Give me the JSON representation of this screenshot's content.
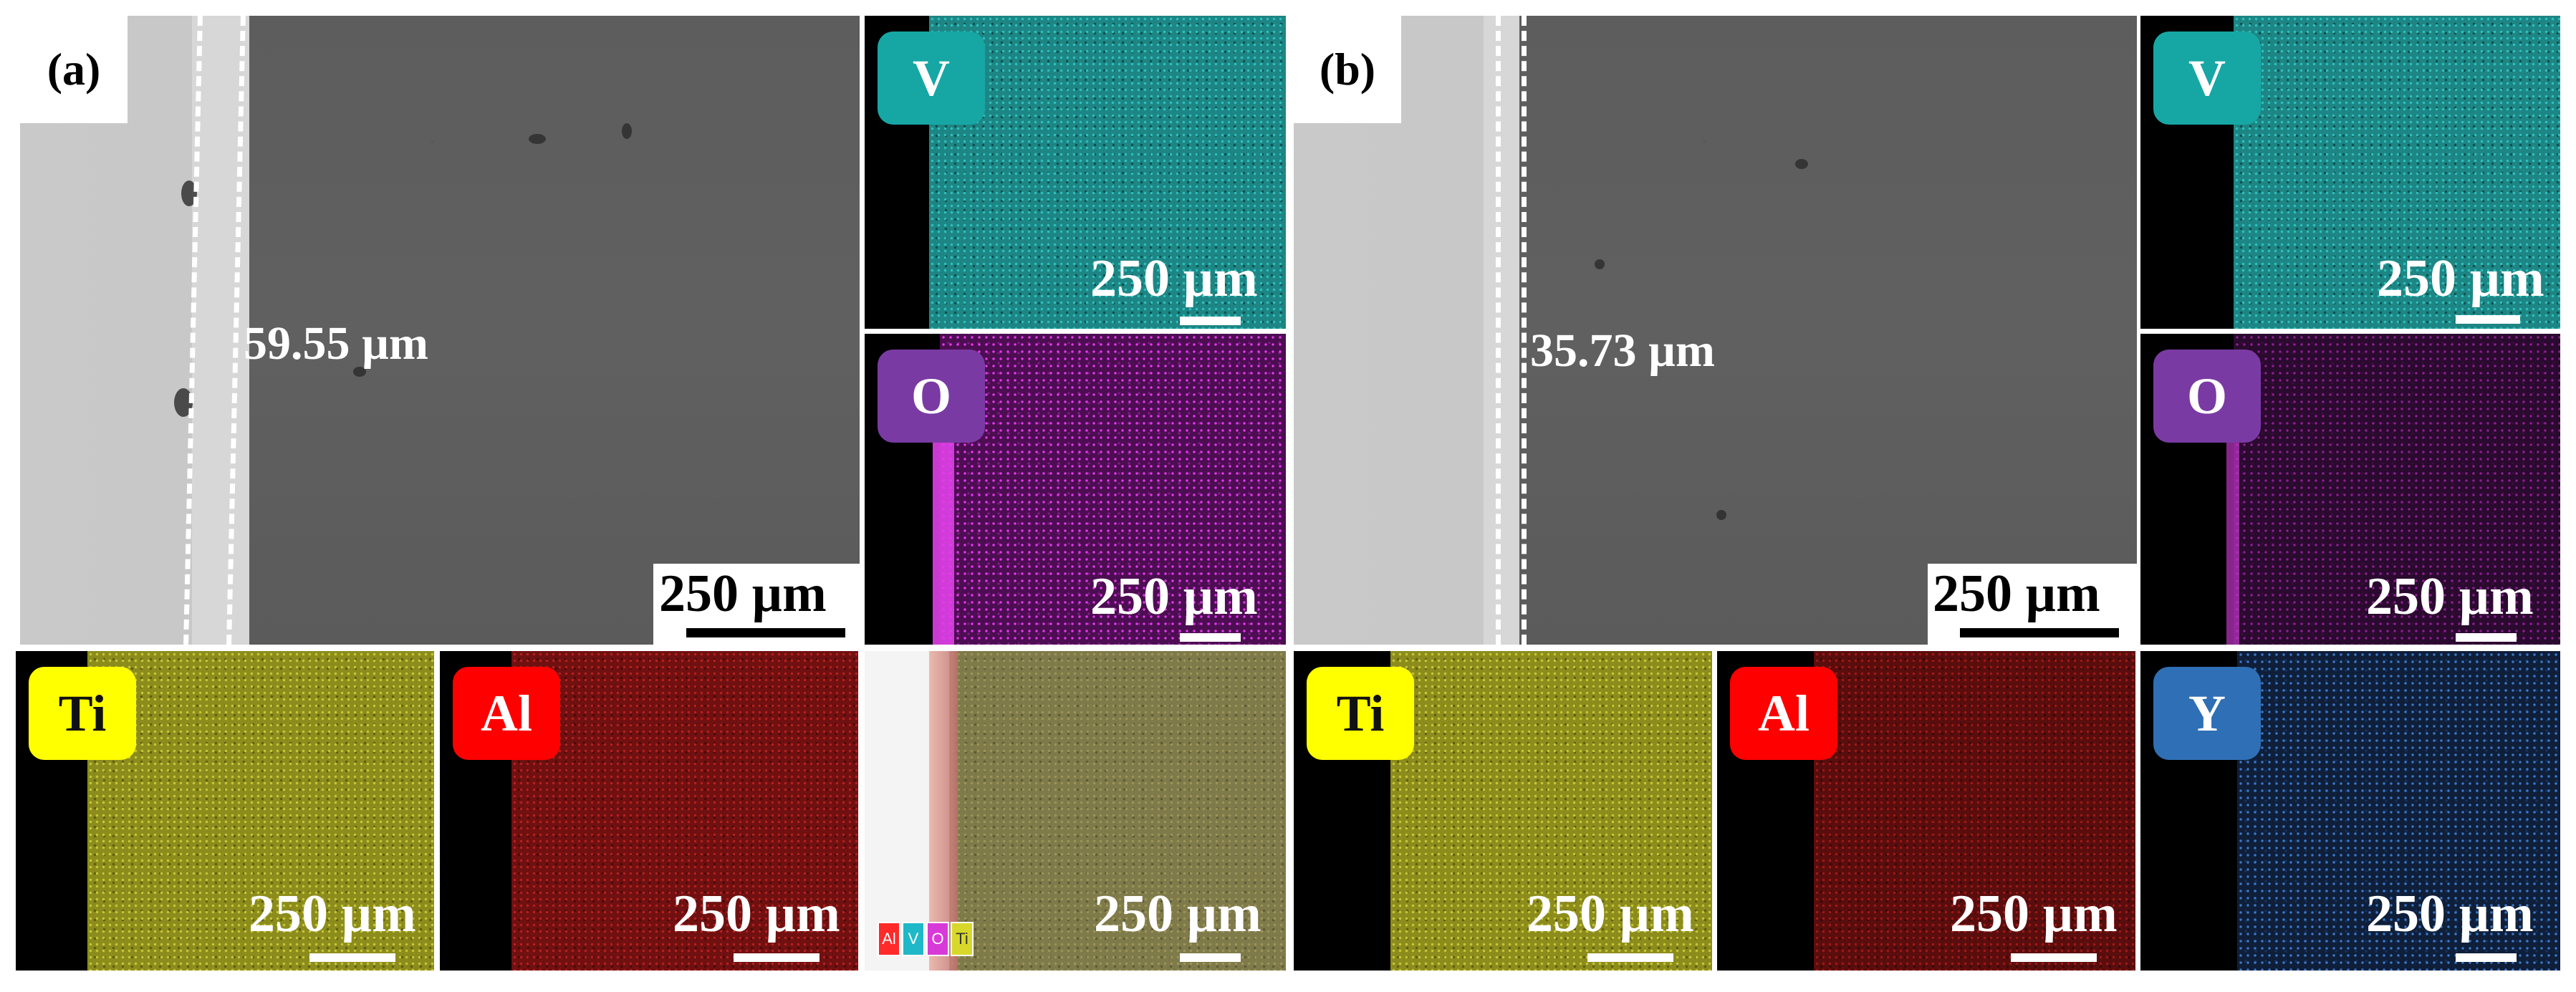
{
  "panel_labels": {
    "a": "(a)",
    "b": "(b)"
  },
  "thickness": {
    "a": "59.55 µm",
    "b": "35.73 µm"
  },
  "scale_bar": "250 µm",
  "elements": {
    "V": "V",
    "O": "O",
    "Ti": "Ti",
    "Al": "Al",
    "Y": "Y"
  },
  "overlay_legend": [
    "Al",
    "V",
    "O",
    "Ti"
  ],
  "colors": {
    "V": "#16a7a5",
    "O": "#7a3aa3",
    "Ti": "#ffff00",
    "Al": "#ff0000",
    "Y": "#2f6fb5",
    "V_map": "#1c8c8a",
    "O_map": "#b21ab8",
    "Ti_map": "#a6a62a",
    "Al_map": "#8e1414",
    "Y_map": "#2b5fa3"
  }
}
